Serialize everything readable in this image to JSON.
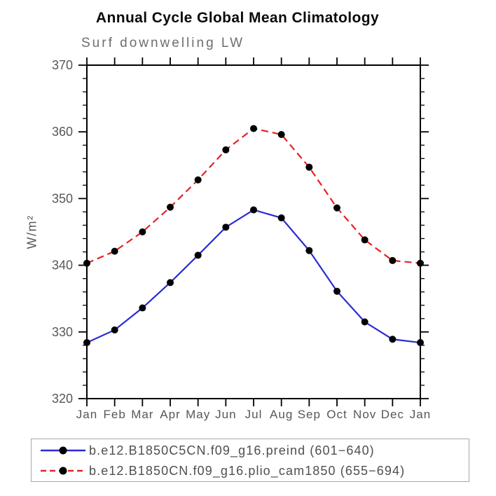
{
  "chart_data": {
    "type": "line",
    "title": "Annual Cycle Global Mean Climatology",
    "subtitle": "Surf downwelling LW",
    "ylabel": "W/m²",
    "x_categories": [
      "Jan",
      "Feb",
      "Mar",
      "Apr",
      "May",
      "Jun",
      "Jul",
      "Aug",
      "Sep",
      "Oct",
      "Nov",
      "Dec",
      "Jan"
    ],
    "ylim": [
      320,
      370
    ],
    "y_ticks": [
      320,
      330,
      340,
      350,
      360,
      370
    ],
    "y_minor_step": 2,
    "grid": false,
    "legend_position": "bottom-left",
    "frame_color": "#000000",
    "text_color": "#575757",
    "series": [
      {
        "name": "b.e12.B1850C5CN.f09_g16.preind (601−640)",
        "line_style": "solid",
        "line_color": "#2b2bd0",
        "marker": "filled-circle",
        "marker_color": "#000000",
        "values": [
          328.4,
          330.3,
          333.6,
          337.4,
          341.5,
          345.7,
          348.3,
          347.1,
          342.2,
          336.1,
          331.5,
          328.9,
          328.4
        ]
      },
      {
        "name": "b.e12.B1850CN.f09_g16.plio_cam1850 (655−694)",
        "line_style": "dashed",
        "line_color": "#e62222",
        "marker": "filled-circle",
        "marker_color": "#000000",
        "values": [
          340.3,
          342.1,
          345.0,
          348.7,
          352.8,
          357.3,
          360.5,
          359.6,
          354.7,
          348.6,
          343.8,
          340.7,
          340.3
        ]
      }
    ]
  }
}
